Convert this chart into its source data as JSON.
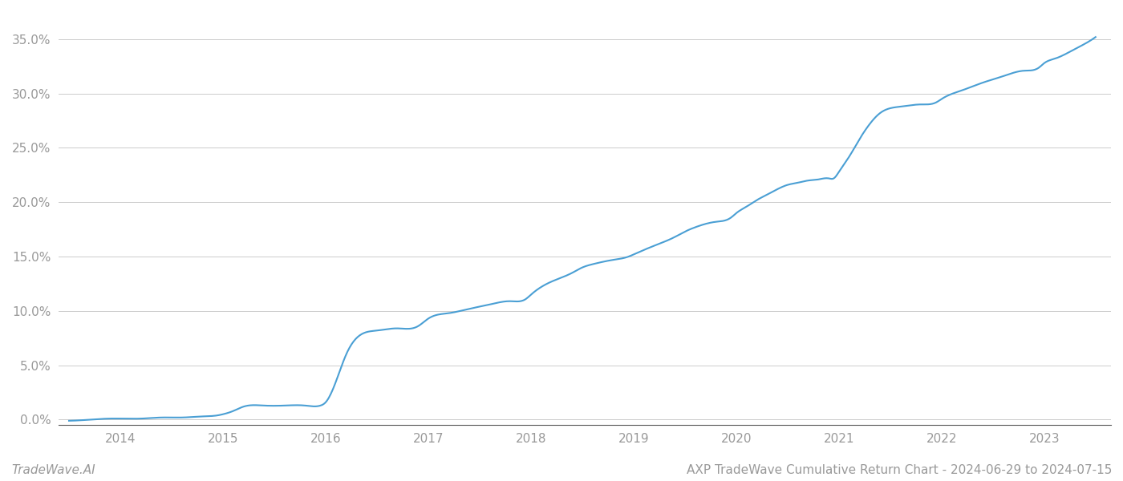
{
  "title": "AXP TradeWave Cumulative Return Chart - 2024-06-29 to 2024-07-15",
  "watermark": "TradeWave.AI",
  "line_color": "#4a9fd4",
  "background_color": "#ffffff",
  "grid_color": "#cccccc",
  "x_years": [
    2014,
    2015,
    2016,
    2017,
    2018,
    2019,
    2020,
    2021,
    2022,
    2023
  ],
  "y_ticks": [
    0.0,
    0.05,
    0.1,
    0.15,
    0.2,
    0.25,
    0.3,
    0.35
  ],
  "data_x": [
    2013.5,
    2013.7,
    2013.9,
    2014.0,
    2014.2,
    2014.4,
    2014.6,
    2014.8,
    2014.95,
    2015.0,
    2015.1,
    2015.2,
    2015.4,
    2015.6,
    2015.8,
    2015.95,
    2016.0,
    2016.1,
    2016.2,
    2016.3,
    2016.5,
    2016.7,
    2016.9,
    2017.0,
    2017.2,
    2017.4,
    2017.6,
    2017.8,
    2017.95,
    2018.0,
    2018.2,
    2018.4,
    2018.5,
    2018.6,
    2018.8,
    2018.95,
    2019.0,
    2019.2,
    2019.4,
    2019.5,
    2019.6,
    2019.8,
    2019.95,
    2020.0,
    2020.1,
    2020.2,
    2020.3,
    2020.4,
    2020.5,
    2020.6,
    2020.7,
    2020.8,
    2020.9,
    2020.95,
    2021.0,
    2021.1,
    2021.2,
    2021.3,
    2021.4,
    2021.6,
    2021.8,
    2021.95,
    2022.0,
    2022.2,
    2022.4,
    2022.6,
    2022.8,
    2022.95,
    2023.0,
    2023.1,
    2023.2,
    2023.3,
    2023.4,
    2023.5
  ],
  "data_y": [
    -0.001,
    0.0,
    0.001,
    0.001,
    0.001,
    0.002,
    0.002,
    0.003,
    0.004,
    0.005,
    0.008,
    0.012,
    0.013,
    0.013,
    0.013,
    0.013,
    0.016,
    0.035,
    0.06,
    0.075,
    0.082,
    0.084,
    0.086,
    0.093,
    0.098,
    0.102,
    0.106,
    0.109,
    0.111,
    0.115,
    0.127,
    0.135,
    0.14,
    0.143,
    0.147,
    0.15,
    0.152,
    0.16,
    0.168,
    0.173,
    0.177,
    0.182,
    0.186,
    0.19,
    0.196,
    0.202,
    0.207,
    0.212,
    0.216,
    0.218,
    0.22,
    0.221,
    0.222,
    0.222,
    0.228,
    0.242,
    0.258,
    0.272,
    0.282,
    0.288,
    0.29,
    0.292,
    0.295,
    0.303,
    0.31,
    0.316,
    0.321,
    0.324,
    0.328,
    0.332,
    0.336,
    0.341,
    0.346,
    0.352
  ],
  "xlim": [
    2013.4,
    2023.65
  ],
  "ylim": [
    -0.005,
    0.375
  ],
  "title_fontsize": 11,
  "watermark_fontsize": 11,
  "tick_label_color": "#999999",
  "axis_line_color": "#555555",
  "spine_color": "#cccccc"
}
